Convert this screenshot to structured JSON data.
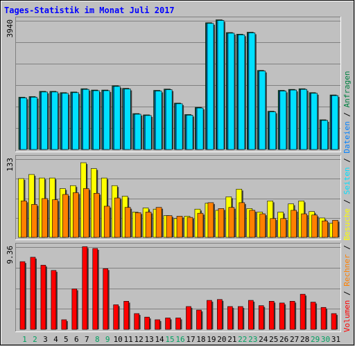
{
  "title": "Tages-Statistik im Monat Juli 2017",
  "colors": {
    "background": "#C0C0C0",
    "title": "#0000FF",
    "hits": "#008040",
    "files": "#0080FF",
    "pages": "#00E0FF",
    "visits": "#FFFF00",
    "sites": "#FF8000",
    "volume": "#FF0000",
    "weekend_label": "#00A060"
  },
  "legend": [
    {
      "label": "Anfragen",
      "color": "#008040"
    },
    {
      "label": "Dateien",
      "color": "#0080FF"
    },
    {
      "label": "Seiten",
      "color": "#00E0FF"
    },
    {
      "label": "Besuche",
      "color": "#FFFF00"
    },
    {
      "label": "Rechner",
      "color": "#FF8000"
    },
    {
      "label": "Volumen",
      "color": "#FF0000"
    }
  ],
  "chart_data": {
    "type": "bar",
    "categories": [
      "1",
      "2",
      "3",
      "4",
      "5",
      "6",
      "7",
      "8",
      "9",
      "10",
      "11",
      "12",
      "13",
      "14",
      "15",
      "16",
      "17",
      "18",
      "19",
      "20",
      "21",
      "22",
      "23",
      "24",
      "25",
      "26",
      "27",
      "28",
      "29",
      "30",
      "31"
    ],
    "weekend_days": [
      "1",
      "2",
      "8",
      "9",
      "15",
      "16",
      "22",
      "23",
      "29",
      "30"
    ],
    "panels": [
      {
        "name": "requests",
        "ymax_label": "3940",
        "ymax": 3940,
        "series": [
          {
            "name": "Anfragen",
            "color": "#008040",
            "values": [
              1600,
              1620,
              1780,
              1780,
              1740,
              1760,
              1860,
              1820,
              1820,
              1950,
              1870,
              1100,
              1060,
              1810,
              1850,
              1420,
              1070,
              1290,
              3880,
              3970,
              3580,
              3530,
              3590,
              2420,
              1170,
              1810,
              1840,
              1860,
              1740,
              910,
              1670
            ]
          },
          {
            "name": "Dateien",
            "color": "#0080FF",
            "values": [
              1580,
              1600,
              1760,
              1760,
              1720,
              1740,
              1840,
              1800,
              1800,
              1930,
              1850,
              1080,
              1040,
              1790,
              1830,
              1400,
              1050,
              1270,
              3860,
              3950,
              3560,
              3510,
              3570,
              2400,
              1150,
              1790,
              1820,
              1840,
              1720,
              890,
              1650
            ]
          },
          {
            "name": "Seiten",
            "color": "#00E0FF",
            "values": [
              1580,
              1600,
              1760,
              1760,
              1720,
              1740,
              1840,
              1800,
              1800,
              1930,
              1850,
              1080,
              1040,
              1790,
              1830,
              1400,
              1050,
              1270,
              3860,
              3950,
              3560,
              3510,
              3570,
              2400,
              1150,
              1790,
              1820,
              1840,
              1720,
              890,
              1650
            ]
          }
        ]
      },
      {
        "name": "visits",
        "ymax_label": "133",
        "ymax": 133,
        "series": [
          {
            "name": "Besuche",
            "color": "#FFFF00",
            "values": [
              100,
              107,
              101,
              101,
              83,
              88,
              127,
              117,
              101,
              88,
              70,
              43,
              50,
              48,
              37,
              32,
              36,
              48,
              58,
              46,
              69,
              82,
              49,
              43,
              62,
              43,
              57,
              62,
              44,
              33,
              24
            ]
          },
          {
            "name": "Rechner",
            "color": "#FF8000",
            "values": [
              62,
              56,
              66,
              64,
              73,
              76,
              83,
              75,
              53,
              67,
              51,
              42,
              43,
              51,
              37,
              36,
              34,
              41,
              59,
              49,
              51,
              59,
              46,
              40,
              32,
              32,
              46,
              40,
              38,
              28,
              29
            ]
          }
        ]
      },
      {
        "name": "volume",
        "ymax_label": "9.36",
        "ymax": 9.36,
        "series": [
          {
            "name": "Volumen",
            "color": "#FF0000",
            "values": [
              7.7,
              8.2,
              7.3,
              6.7,
              1.1,
              4.6,
              9.4,
              9.2,
              6.9,
              2.8,
              3.2,
              1.8,
              1.4,
              1.1,
              1.3,
              1.3,
              2.6,
              2.2,
              3.3,
              3.4,
              2.6,
              2.6,
              3.3,
              2.7,
              3.2,
              3.0,
              3.2,
              4.0,
              3.1,
              2.5,
              1.8
            ]
          }
        ]
      }
    ],
    "grid": true
  }
}
